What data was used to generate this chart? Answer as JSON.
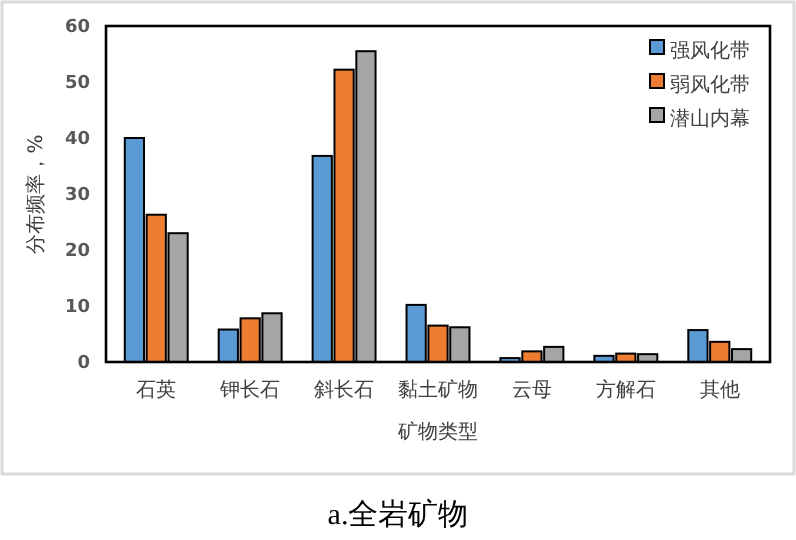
{
  "chart_data": {
    "type": "bar",
    "categories": [
      "石英",
      "钾长石",
      "斜长石",
      "黏土矿物",
      "云母",
      "方解石",
      "其他"
    ],
    "series": [
      {
        "name": "强风化带",
        "color": "#5b9bd5",
        "values": [
          40,
          5.8,
          36.8,
          10.2,
          0.7,
          1.1,
          5.7
        ]
      },
      {
        "name": "弱风化带",
        "color": "#ed7d31",
        "values": [
          26.3,
          7.8,
          52.2,
          6.5,
          1.9,
          1.5,
          3.6
        ]
      },
      {
        "name": "潜山内幕",
        "color": "#a5a5a5",
        "values": [
          23,
          8.7,
          55.5,
          6.2,
          2.7,
          1.4,
          2.3
        ]
      }
    ],
    "xlabel": "矿物类型",
    "ylabel": "分布频率，%",
    "ylim": [
      0,
      60
    ],
    "yticks": [
      0,
      10,
      20,
      30,
      40,
      50,
      60
    ],
    "legend": "top right",
    "grid": false,
    "annotations": [
      "a.全岩矿物"
    ]
  }
}
